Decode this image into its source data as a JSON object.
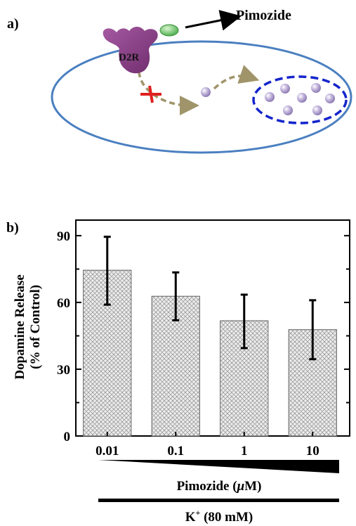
{
  "panel_a": {
    "label": "a)",
    "receptor_label": "D2R",
    "drug_label": "Pimozide",
    "colors": {
      "cell_outline": "#4a7fc0",
      "receptor": "#8a3f86",
      "drug": "#6cc86c",
      "arrow": "#a0956a",
      "block_mark": "#e02020",
      "vesicle_outline": "#1525cc",
      "dopamine": "#b8a8d8"
    },
    "icons": [
      "d2r-receptor-icon",
      "pimozide-drug-icon",
      "dopamine-molecule-icon",
      "vesicle-icon",
      "block-cross-icon"
    ]
  },
  "panel_b": {
    "label": "b)",
    "dose_label_prefix": "Pimozide (",
    "dose_label_unit": "μ",
    "dose_label_suffix": "M)",
    "k_label_base": "K",
    "k_label_sup": "+",
    "k_label_rest": " (80 mM)"
  },
  "chart_data": {
    "type": "bar",
    "categories": [
      "0.01",
      "0.1",
      "1",
      "10"
    ],
    "values": [
      74.5,
      62.8,
      51.8,
      47.8
    ],
    "errors_upper": [
      89.5,
      73.5,
      63.5,
      61.0
    ],
    "errors_lower": [
      59.0,
      52.0,
      39.5,
      34.5
    ],
    "ylabel_line1": "Dopamine Release",
    "ylabel_line2": "(% of Control)",
    "ylim": [
      0,
      97
    ],
    "yticks": [
      0,
      30,
      60,
      90
    ],
    "grid": false,
    "bar_pattern": "crosshatch"
  }
}
